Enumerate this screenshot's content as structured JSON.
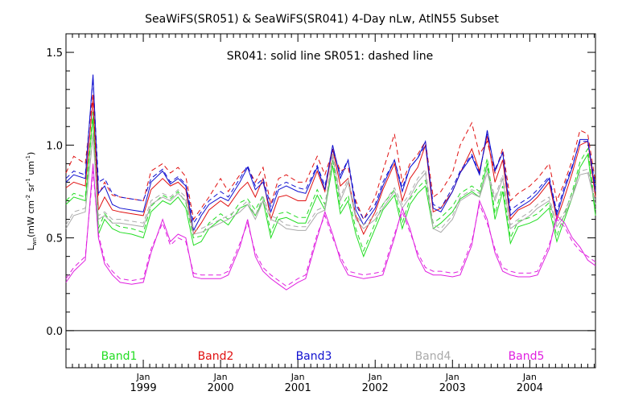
{
  "chart_data": {
    "type": "line",
    "title": "SeaWiFS(SR051) & SeaWiFS(SR041) 4-Day nLw, AtlN55 Subset",
    "annotation": "SR041: solid line   SR051: dashed line",
    "ylabel": {
      "main": "L",
      "sub": "wn",
      "units_a": "(mW cm",
      "sup1": "-2",
      "units_b": " sr",
      "sup2": "-1",
      "units_c": " um",
      "sup3": "-1",
      "units_d": ")"
    },
    "ylim": [
      -0.2,
      1.6
    ],
    "yticks": [
      "0.0",
      "0.5",
      "1.0",
      "1.5"
    ],
    "zero_line": 0.0,
    "xlim": [
      1998.0,
      2004.85
    ],
    "xticks": [
      {
        "x": 1999.0,
        "top": "Jan",
        "bottom": "1999"
      },
      {
        "x": 2000.0,
        "top": "Jan",
        "bottom": "2000"
      },
      {
        "x": 2001.0,
        "top": "Jan",
        "bottom": "2001"
      },
      {
        "x": 2002.0,
        "top": "Jan",
        "bottom": "2002"
      },
      {
        "x": 2003.0,
        "top": "Jan",
        "bottom": "2003"
      },
      {
        "x": 2004.0,
        "top": "Jan",
        "bottom": "2004"
      }
    ],
    "colors": {
      "Band1": "#22dd22",
      "Band2": "#e01010",
      "Band3": "#1010d0",
      "Band4": "#aaaaaa",
      "Band5": "#e020e0",
      "axis": "#000000"
    },
    "legend": [
      "Band1",
      "Band2",
      "Band3",
      "Band4",
      "Band5"
    ],
    "legend_placement": "bottom",
    "x": [
      1998.0,
      1998.1,
      1998.25,
      1998.35,
      1998.42,
      1998.5,
      1998.6,
      1998.7,
      1998.85,
      1999.0,
      1999.1,
      1999.25,
      1999.35,
      1999.45,
      1999.55,
      1999.65,
      1999.75,
      1999.85,
      2000.0,
      2000.1,
      2000.25,
      2000.35,
      2000.45,
      2000.55,
      2000.65,
      2000.75,
      2000.85,
      2001.0,
      2001.1,
      2001.25,
      2001.35,
      2001.45,
      2001.55,
      2001.65,
      2001.75,
      2001.85,
      2002.0,
      2002.1,
      2002.25,
      2002.35,
      2002.45,
      2002.55,
      2002.65,
      2002.75,
      2002.85,
      2003.0,
      2003.1,
      2003.25,
      2003.35,
      2003.45,
      2003.55,
      2003.65,
      2003.75,
      2003.85,
      2004.0,
      2004.1,
      2004.25,
      2004.35,
      2004.45,
      2004.55,
      2004.65,
      2004.75,
      2004.85
    ],
    "series": [
      {
        "name": "Band1",
        "style": "solid",
        "values": [
          0.68,
          0.72,
          0.7,
          1.15,
          0.52,
          0.6,
          0.55,
          0.53,
          0.52,
          0.5,
          0.64,
          0.7,
          0.68,
          0.72,
          0.66,
          0.46,
          0.48,
          0.55,
          0.6,
          0.57,
          0.66,
          0.68,
          0.62,
          0.7,
          0.5,
          0.6,
          0.61,
          0.58,
          0.58,
          0.73,
          0.65,
          0.89,
          0.63,
          0.7,
          0.52,
          0.4,
          0.55,
          0.65,
          0.73,
          0.55,
          0.68,
          0.74,
          0.78,
          0.55,
          0.58,
          0.64,
          0.71,
          0.75,
          0.72,
          0.9,
          0.6,
          0.75,
          0.47,
          0.56,
          0.58,
          0.6,
          0.66,
          0.48,
          0.6,
          0.72,
          0.88,
          0.95,
          0.62
        ]
      },
      {
        "name": "Band1",
        "style": "dashed",
        "values": [
          0.7,
          0.74,
          0.72,
          1.18,
          0.55,
          0.63,
          0.58,
          0.56,
          0.55,
          0.53,
          0.67,
          0.73,
          0.71,
          0.75,
          0.69,
          0.5,
          0.51,
          0.58,
          0.63,
          0.6,
          0.69,
          0.71,
          0.65,
          0.73,
          0.53,
          0.63,
          0.64,
          0.61,
          0.61,
          0.76,
          0.68,
          0.92,
          0.66,
          0.73,
          0.55,
          0.43,
          0.58,
          0.68,
          0.76,
          0.58,
          0.71,
          0.77,
          0.81,
          0.58,
          0.61,
          0.67,
          0.74,
          0.78,
          0.75,
          0.93,
          0.63,
          0.78,
          0.5,
          0.59,
          0.61,
          0.63,
          0.69,
          0.51,
          0.63,
          0.75,
          0.91,
          0.98,
          0.65
        ]
      },
      {
        "name": "Band2",
        "style": "solid",
        "values": [
          0.77,
          0.8,
          0.78,
          1.25,
          0.65,
          0.72,
          0.65,
          0.64,
          0.63,
          0.62,
          0.76,
          0.82,
          0.78,
          0.8,
          0.76,
          0.52,
          0.58,
          0.65,
          0.7,
          0.67,
          0.76,
          0.8,
          0.72,
          0.82,
          0.6,
          0.72,
          0.73,
          0.7,
          0.7,
          0.86,
          0.75,
          0.98,
          0.78,
          0.82,
          0.62,
          0.52,
          0.64,
          0.76,
          0.9,
          0.7,
          0.82,
          0.88,
          1.0,
          0.64,
          0.66,
          0.75,
          0.85,
          0.98,
          0.86,
          1.05,
          0.8,
          0.92,
          0.6,
          0.65,
          0.68,
          0.72,
          0.8,
          0.6,
          0.72,
          0.85,
          1.0,
          1.02,
          0.72
        ]
      },
      {
        "name": "Band2",
        "style": "dashed",
        "values": [
          0.85,
          0.94,
          0.9,
          1.28,
          0.73,
          0.8,
          0.73,
          0.72,
          0.71,
          0.7,
          0.86,
          0.9,
          0.85,
          0.88,
          0.83,
          0.6,
          0.66,
          0.72,
          0.82,
          0.75,
          0.84,
          0.88,
          0.8,
          0.88,
          0.68,
          0.82,
          0.84,
          0.8,
          0.8,
          0.94,
          0.84,
          0.97,
          0.86,
          0.88,
          0.7,
          0.6,
          0.72,
          0.86,
          1.06,
          0.8,
          0.9,
          0.95,
          1.02,
          0.72,
          0.75,
          0.85,
          1.0,
          1.12,
          0.95,
          1.02,
          0.85,
          0.98,
          0.7,
          0.74,
          0.78,
          0.82,
          0.9,
          0.7,
          0.8,
          0.92,
          1.08,
          1.06,
          0.8
        ]
      },
      {
        "name": "Band3",
        "style": "solid",
        "values": [
          0.8,
          0.84,
          0.82,
          1.38,
          0.74,
          0.78,
          0.68,
          0.66,
          0.65,
          0.64,
          0.8,
          0.86,
          0.79,
          0.82,
          0.78,
          0.54,
          0.62,
          0.68,
          0.72,
          0.7,
          0.8,
          0.88,
          0.76,
          0.8,
          0.64,
          0.76,
          0.78,
          0.75,
          0.74,
          0.88,
          0.76,
          1.0,
          0.82,
          0.92,
          0.65,
          0.57,
          0.66,
          0.78,
          0.92,
          0.75,
          0.88,
          0.93,
          1.02,
          0.66,
          0.64,
          0.75,
          0.85,
          0.94,
          0.84,
          1.08,
          0.86,
          0.96,
          0.62,
          0.66,
          0.7,
          0.74,
          0.82,
          0.62,
          0.76,
          0.88,
          1.03,
          1.03,
          0.75
        ]
      },
      {
        "name": "Band3",
        "style": "dashed",
        "values": [
          0.82,
          0.86,
          0.84,
          1.36,
          0.8,
          0.82,
          0.74,
          0.72,
          0.71,
          0.7,
          0.82,
          0.87,
          0.8,
          0.83,
          0.79,
          0.58,
          0.64,
          0.7,
          0.75,
          0.72,
          0.82,
          0.89,
          0.78,
          0.82,
          0.67,
          0.78,
          0.8,
          0.77,
          0.76,
          0.89,
          0.78,
          0.98,
          0.84,
          0.92,
          0.68,
          0.6,
          0.68,
          0.8,
          0.92,
          0.77,
          0.88,
          0.93,
          1.0,
          0.68,
          0.66,
          0.77,
          0.86,
          0.95,
          0.85,
          1.06,
          0.87,
          0.96,
          0.65,
          0.68,
          0.72,
          0.76,
          0.83,
          0.64,
          0.78,
          0.89,
          1.02,
          1.02,
          0.78
        ]
      },
      {
        "name": "Band4",
        "style": "solid",
        "values": [
          0.55,
          0.62,
          0.64,
          1.05,
          0.6,
          0.62,
          0.58,
          0.58,
          0.57,
          0.56,
          0.68,
          0.72,
          0.7,
          0.74,
          0.7,
          0.52,
          0.53,
          0.55,
          0.58,
          0.6,
          0.64,
          0.68,
          0.6,
          0.7,
          0.6,
          0.58,
          0.55,
          0.54,
          0.54,
          0.63,
          0.65,
          0.94,
          0.7,
          0.8,
          0.6,
          0.55,
          0.6,
          0.66,
          0.75,
          0.66,
          0.72,
          0.8,
          0.85,
          0.55,
          0.53,
          0.6,
          0.7,
          0.74,
          0.72,
          0.85,
          0.7,
          0.82,
          0.55,
          0.58,
          0.62,
          0.66,
          0.7,
          0.56,
          0.62,
          0.72,
          0.84,
          0.85,
          0.68
        ]
      },
      {
        "name": "Band4",
        "style": "dashed",
        "values": [
          0.57,
          0.64,
          0.66,
          1.07,
          0.62,
          0.64,
          0.6,
          0.6,
          0.59,
          0.58,
          0.7,
          0.74,
          0.72,
          0.76,
          0.72,
          0.54,
          0.55,
          0.57,
          0.6,
          0.62,
          0.66,
          0.7,
          0.62,
          0.72,
          0.62,
          0.6,
          0.57,
          0.56,
          0.56,
          0.65,
          0.67,
          0.96,
          0.72,
          0.82,
          0.62,
          0.57,
          0.62,
          0.68,
          0.77,
          0.68,
          0.74,
          0.82,
          0.87,
          0.57,
          0.55,
          0.62,
          0.72,
          0.76,
          0.74,
          0.87,
          0.72,
          0.84,
          0.57,
          0.6,
          0.64,
          0.68,
          0.72,
          0.58,
          0.64,
          0.74,
          0.86,
          0.87,
          0.7
        ]
      },
      {
        "name": "Band5",
        "style": "solid",
        "values": [
          0.26,
          0.32,
          0.38,
          0.9,
          0.5,
          0.36,
          0.3,
          0.26,
          0.25,
          0.26,
          0.42,
          0.6,
          0.48,
          0.52,
          0.5,
          0.29,
          0.28,
          0.28,
          0.28,
          0.3,
          0.45,
          0.6,
          0.4,
          0.32,
          0.28,
          0.25,
          0.22,
          0.26,
          0.28,
          0.5,
          0.64,
          0.52,
          0.38,
          0.3,
          0.29,
          0.28,
          0.29,
          0.3,
          0.5,
          0.66,
          0.55,
          0.4,
          0.32,
          0.3,
          0.3,
          0.29,
          0.3,
          0.46,
          0.7,
          0.6,
          0.42,
          0.32,
          0.3,
          0.29,
          0.29,
          0.3,
          0.44,
          0.62,
          0.58,
          0.5,
          0.45,
          0.38,
          0.35
        ]
      },
      {
        "name": "Band5",
        "style": "dashed",
        "values": [
          0.28,
          0.34,
          0.4,
          0.86,
          0.52,
          0.38,
          0.32,
          0.28,
          0.27,
          0.28,
          0.44,
          0.58,
          0.46,
          0.5,
          0.48,
          0.31,
          0.3,
          0.3,
          0.3,
          0.32,
          0.47,
          0.58,
          0.42,
          0.34,
          0.3,
          0.27,
          0.24,
          0.28,
          0.3,
          0.52,
          0.62,
          0.5,
          0.4,
          0.32,
          0.31,
          0.3,
          0.31,
          0.32,
          0.52,
          0.64,
          0.53,
          0.42,
          0.34,
          0.32,
          0.32,
          0.31,
          0.32,
          0.48,
          0.68,
          0.58,
          0.44,
          0.34,
          0.32,
          0.31,
          0.31,
          0.32,
          0.46,
          0.6,
          0.56,
          0.48,
          0.43,
          0.4,
          0.37
        ]
      }
    ]
  }
}
